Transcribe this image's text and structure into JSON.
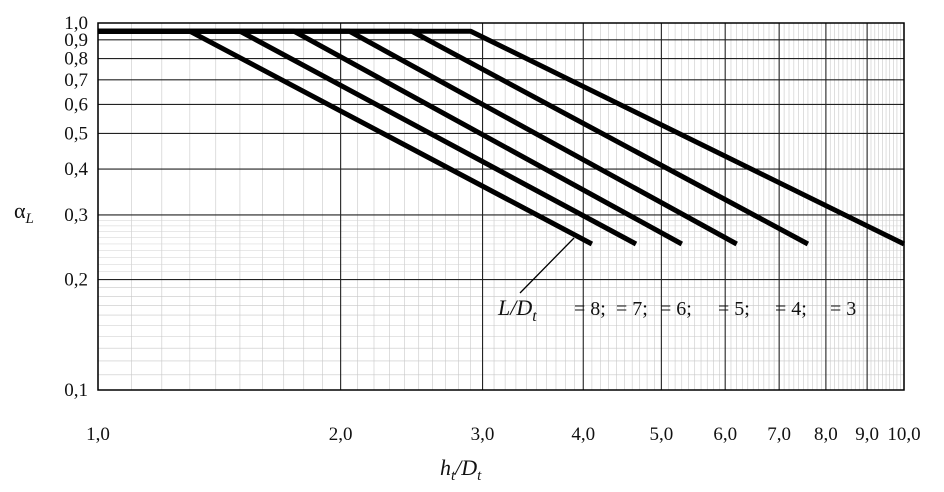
{
  "chart_data": {
    "type": "line",
    "xscale": "log",
    "yscale": "log",
    "xlim": [
      1.0,
      10.0
    ],
    "ylim": [
      0.1,
      1.0
    ],
    "grid": true,
    "xlabel_main": "h",
    "xlabel_sub1": "t",
    "xlabel_sep": "/D",
    "xlabel_sub2": "t",
    "ylabel_main": "α",
    "ylabel_sub": "L",
    "x_ticks": [
      "1,0",
      "2,0",
      "3,0",
      "4,0",
      "5,0",
      "6,0",
      "7,0",
      "8,0",
      "9,0",
      "10,0"
    ],
    "x_tick_values": [
      1,
      2,
      3,
      4,
      5,
      6,
      7,
      8,
      9,
      10
    ],
    "y_ticks": [
      "1,0",
      "0,9",
      "0,8",
      "0,7",
      "0,6",
      "0,5",
      "0,4",
      "0,3",
      "0,2",
      "0,1"
    ],
    "y_tick_values": [
      1.0,
      0.9,
      0.8,
      0.7,
      0.6,
      0.5,
      0.4,
      0.3,
      0.2,
      0.1
    ],
    "annotation": {
      "main": "L",
      "sep": "/D",
      "sub": "t",
      "labels": [
        "= 8;",
        "= 7;",
        "= 6;",
        "= 5;",
        "= 4;",
        "= 3"
      ]
    },
    "series": [
      {
        "points": [
          [
            1.0,
            0.95
          ],
          [
            1.3,
            0.95
          ],
          [
            4.1,
            0.25
          ]
        ]
      },
      {
        "points": [
          [
            1.0,
            0.95
          ],
          [
            1.5,
            0.95
          ],
          [
            4.65,
            0.25
          ]
        ]
      },
      {
        "points": [
          [
            1.0,
            0.95
          ],
          [
            1.75,
            0.95
          ],
          [
            5.3,
            0.25
          ]
        ]
      },
      {
        "points": [
          [
            1.0,
            0.95
          ],
          [
            2.05,
            0.95
          ],
          [
            6.2,
            0.25
          ]
        ]
      },
      {
        "points": [
          [
            1.0,
            0.95
          ],
          [
            2.45,
            0.95
          ],
          [
            7.6,
            0.25
          ]
        ]
      },
      {
        "points": [
          [
            1.0,
            0.95
          ],
          [
            2.9,
            0.95
          ],
          [
            10.0,
            0.25
          ]
        ]
      }
    ]
  }
}
